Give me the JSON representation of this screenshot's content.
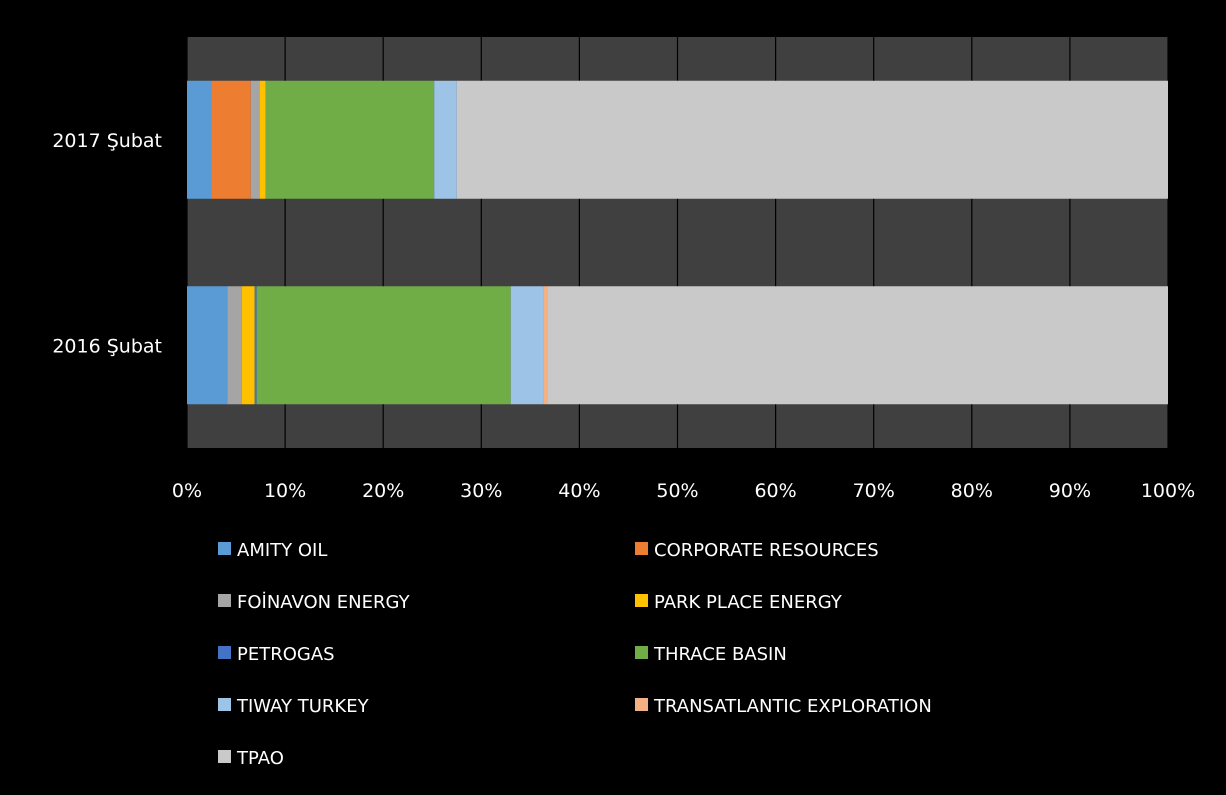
{
  "chart_data": {
    "type": "bar",
    "orientation": "horizontal",
    "stacking": "percent",
    "categories": [
      "2017 Şubat",
      "2016 Şubat"
    ],
    "series": [
      {
        "name": "AMITY OIL",
        "color": "#5b9bd5",
        "values": [
          2.5,
          4.1
        ]
      },
      {
        "name": "CORPORATE RESOURCES",
        "color": "#ed7d31",
        "values": [
          4.0,
          0.0
        ]
      },
      {
        "name": "FOİNAVON ENERGY",
        "color": "#a5a5a5",
        "values": [
          0.9,
          1.5
        ]
      },
      {
        "name": "PARK PLACE ENERGY",
        "color": "#ffc000",
        "values": [
          0.6,
          1.3
        ]
      },
      {
        "name": "PETROGAS",
        "color": "#4472c4",
        "values": [
          0.0,
          0.2
        ]
      },
      {
        "name": "THRACE BASIN",
        "color": "#70ad47",
        "values": [
          17.2,
          25.9
        ]
      },
      {
        "name": "TIWAY TURKEY",
        "color": "#9dc3e6",
        "values": [
          2.3,
          3.3
        ]
      },
      {
        "name": "TRANSATLANTIC EXPLORATION",
        "color": "#f4b183",
        "values": [
          0.0,
          0.5
        ]
      },
      {
        "name": "TPAO",
        "color": "#c9c9c9",
        "values": [
          72.5,
          63.2
        ]
      }
    ],
    "x_ticks": [
      "0%",
      "10%",
      "20%",
      "30%",
      "40%",
      "50%",
      "60%",
      "70%",
      "80%",
      "90%",
      "100%"
    ],
    "xlim": [
      0,
      100
    ],
    "grid": true,
    "legend_position": "bottom",
    "plot_background": "#404040",
    "background": "#000000"
  }
}
